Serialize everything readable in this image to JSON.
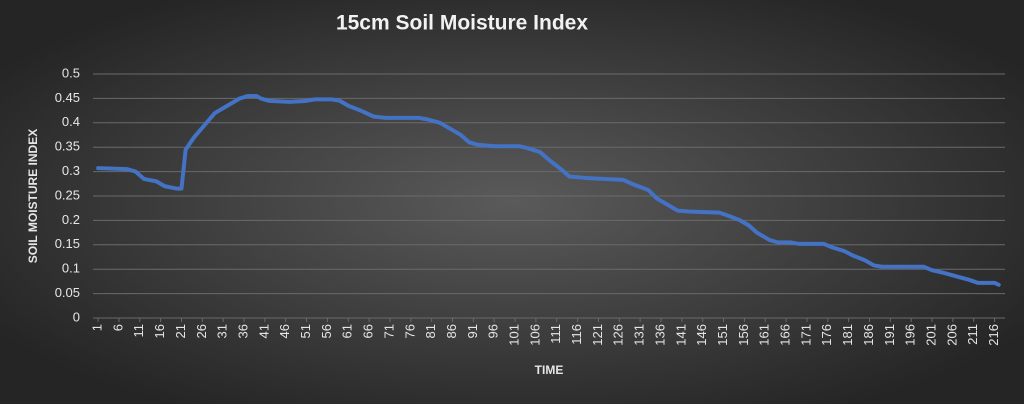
{
  "chart_data": {
    "type": "line",
    "title": "15cm Soil Moisture Index",
    "x_label": "TIME",
    "y_label": "SOIL MOISTURE INDEX",
    "series": [
      {
        "name": "15cm Soil Moisture Index",
        "color": "#4472c4",
        "x": [
          1,
          8,
          10,
          12,
          15,
          17,
          20,
          21,
          22,
          24,
          27,
          29,
          32,
          35,
          37,
          39,
          40,
          42,
          47,
          51,
          53,
          57,
          59,
          61,
          64,
          67,
          70,
          78,
          80,
          83,
          85,
          88,
          90,
          92,
          96,
          102,
          104,
          107,
          109,
          112,
          114,
          118,
          122,
          127,
          129,
          133,
          135,
          138,
          140,
          143,
          150,
          152,
          155,
          157,
          159,
          162,
          164,
          167,
          169,
          175,
          177,
          180,
          182,
          185,
          187,
          189,
          199,
          201,
          204,
          207,
          210,
          212,
          216,
          217
        ],
        "values": [
          0.307,
          0.305,
          0.3,
          0.285,
          0.28,
          0.27,
          0.265,
          0.265,
          0.345,
          0.37,
          0.4,
          0.42,
          0.435,
          0.45,
          0.455,
          0.455,
          0.45,
          0.445,
          0.443,
          0.445,
          0.448,
          0.448,
          0.445,
          0.435,
          0.425,
          0.413,
          0.41,
          0.41,
          0.407,
          0.4,
          0.39,
          0.375,
          0.36,
          0.355,
          0.352,
          0.352,
          0.348,
          0.34,
          0.325,
          0.305,
          0.29,
          0.287,
          0.285,
          0.283,
          0.275,
          0.262,
          0.245,
          0.23,
          0.22,
          0.218,
          0.216,
          0.21,
          0.2,
          0.19,
          0.175,
          0.16,
          0.155,
          0.155,
          0.152,
          0.152,
          0.145,
          0.137,
          0.128,
          0.118,
          0.108,
          0.105,
          0.105,
          0.098,
          0.092,
          0.085,
          0.078,
          0.072,
          0.072,
          0.068
        ]
      }
    ],
    "xlim": [
      0.5,
      218.5
    ],
    "xticks": [
      1,
      6,
      11,
      16,
      21,
      26,
      31,
      36,
      41,
      46,
      51,
      56,
      61,
      66,
      71,
      76,
      81,
      86,
      91,
      96,
      101,
      106,
      111,
      116,
      121,
      126,
      131,
      136,
      141,
      146,
      151,
      156,
      161,
      166,
      171,
      176,
      181,
      186,
      191,
      196,
      201,
      206,
      211,
      216
    ],
    "ylim": [
      0,
      0.5
    ],
    "yticks": [
      0,
      0.05,
      0.1,
      0.15,
      0.2,
      0.25,
      0.3,
      0.35,
      0.4,
      0.45,
      0.5
    ],
    "grid": true
  }
}
